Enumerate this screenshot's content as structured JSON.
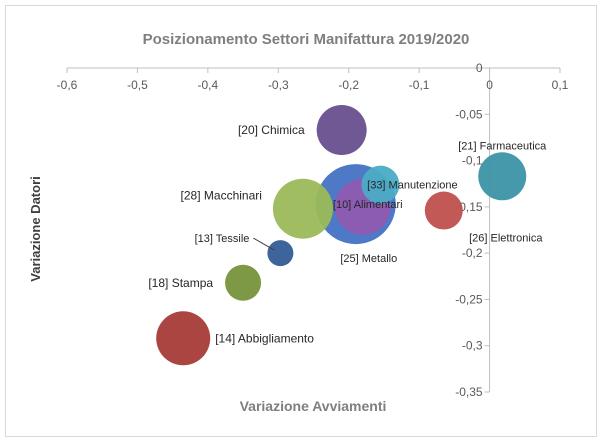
{
  "chart_data": {
    "type": "scatter",
    "bubble": true,
    "title": "Posizionamento Settori Manifattura 2019/2020",
    "xlabel": "Variazione Avviamenti",
    "ylabel": "Variazione Datori",
    "xlim": [
      -0.6,
      0.1
    ],
    "ylim": [
      -0.35,
      0
    ],
    "x_ticks": [
      -0.6,
      -0.5,
      -0.4,
      -0.3,
      -0.2,
      -0.1,
      0,
      0.1
    ],
    "x_tick_labels": [
      "-0,6",
      "-0,5",
      "-0,4",
      "-0,3",
      "-0,2",
      "-0,1",
      "0",
      "0,1"
    ],
    "y_ticks": [
      0,
      -0.05,
      -0.1,
      -0.15,
      -0.2,
      -0.25,
      -0.3,
      -0.35
    ],
    "y_tick_labels": [
      "0",
      "-0,05",
      "-0,1",
      "-0,15",
      "-0,2",
      "-0,25",
      "-0,3",
      "-0,35"
    ],
    "grid": false,
    "points": [
      {
        "label": "[10] Alimentari",
        "x": -0.19,
        "y": -0.147,
        "size": 40,
        "color": "#4472c4"
      },
      {
        "label": "[25] Metallo",
        "x": -0.18,
        "y": -0.15,
        "size": 28,
        "color": "#8e5bb1"
      },
      {
        "label": "[20] Chimica",
        "x": -0.21,
        "y": -0.067,
        "size": 25,
        "color": "#674f8d"
      },
      {
        "label": "[33] Manutenzione",
        "x": -0.155,
        "y": -0.126,
        "size": 19,
        "color": "#4bacc6"
      },
      {
        "label": "[21] Farmaceutica",
        "x": 0.018,
        "y": -0.117,
        "size": 24,
        "color": "#3b93a7"
      },
      {
        "label": "[26] Elettronica",
        "x": -0.065,
        "y": -0.154,
        "size": 19,
        "color": "#c0504d"
      },
      {
        "label": "[28] Macchinari",
        "x": -0.265,
        "y": -0.152,
        "size": 30,
        "color": "#9bbb59"
      },
      {
        "label": "[13] Tessile",
        "x": -0.297,
        "y": -0.2,
        "size": 13,
        "color": "#335d96"
      },
      {
        "label": "[18] Stampa",
        "x": -0.35,
        "y": -0.232,
        "size": 18,
        "color": "#77933c"
      },
      {
        "label": "[14] Abbigliamento",
        "x": -0.435,
        "y": -0.292,
        "size": 27,
        "color": "#a53b38"
      }
    ]
  }
}
